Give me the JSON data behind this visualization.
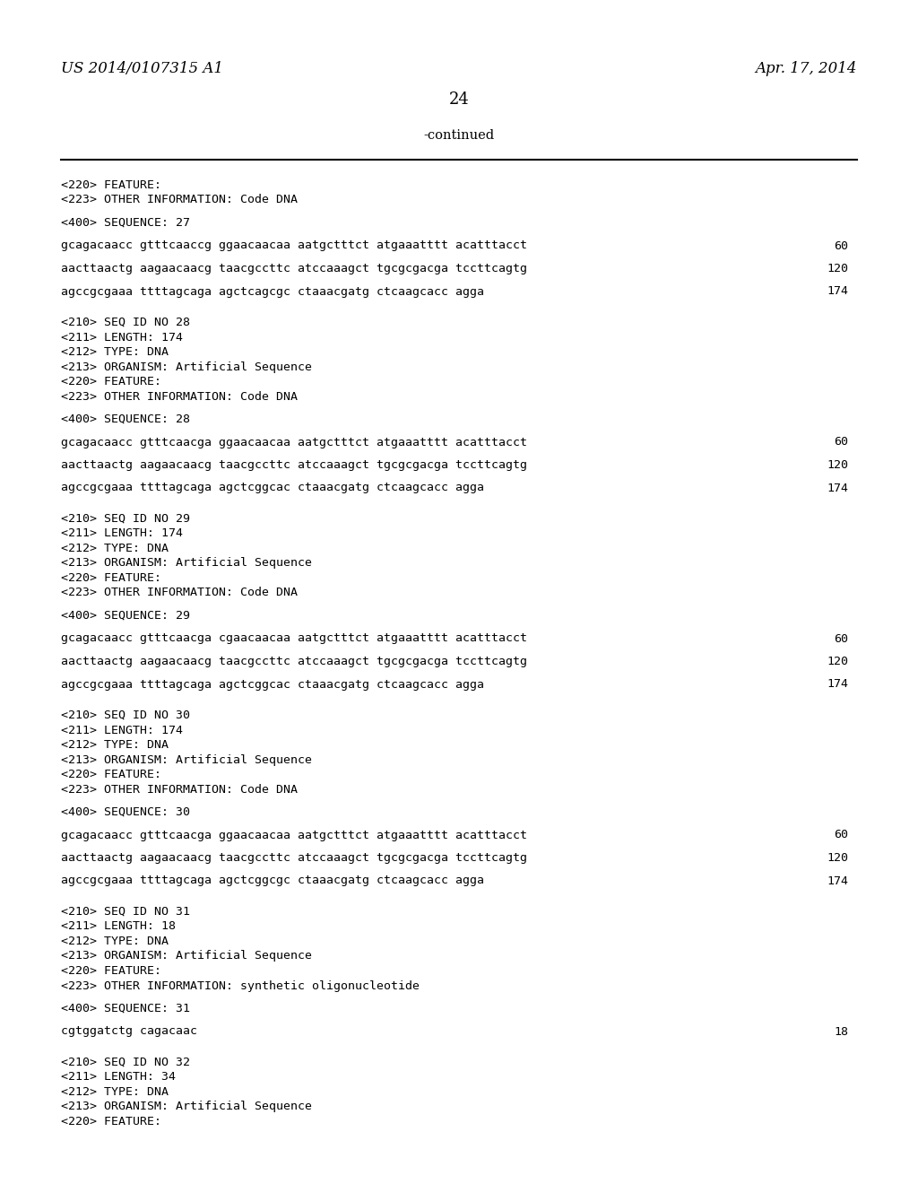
{
  "background_color": "#ffffff",
  "header_left": "US 2014/0107315 A1",
  "header_right": "Apr. 17, 2014",
  "page_number": "24",
  "continued_label": "-continued",
  "content_lines": [
    {
      "text": "<220> FEATURE:",
      "type": "meta"
    },
    {
      "text": "<223> OTHER INFORMATION: Code DNA",
      "type": "meta"
    },
    {
      "text": "",
      "type": "blank"
    },
    {
      "text": "<400> SEQUENCE: 27",
      "type": "meta"
    },
    {
      "text": "",
      "type": "blank"
    },
    {
      "text": "gcagacaacc gtttcaaccg ggaacaacaa aatgctttct atgaaatttt acatttacct",
      "num": "60",
      "type": "seq"
    },
    {
      "text": "",
      "type": "blank"
    },
    {
      "text": "aacttaactg aagaacaacg taacgccttc atccaaagct tgcgcgacga tccttcagtg",
      "num": "120",
      "type": "seq"
    },
    {
      "text": "",
      "type": "blank"
    },
    {
      "text": "agccgcgaaa ttttagcaga agctcagcgc ctaaacgatg ctcaagcacc agga",
      "num": "174",
      "type": "seq"
    },
    {
      "text": "",
      "type": "blank"
    },
    {
      "text": "",
      "type": "blank"
    },
    {
      "text": "<210> SEQ ID NO 28",
      "type": "meta"
    },
    {
      "text": "<211> LENGTH: 174",
      "type": "meta"
    },
    {
      "text": "<212> TYPE: DNA",
      "type": "meta"
    },
    {
      "text": "<213> ORGANISM: Artificial Sequence",
      "type": "meta"
    },
    {
      "text": "<220> FEATURE:",
      "type": "meta"
    },
    {
      "text": "<223> OTHER INFORMATION: Code DNA",
      "type": "meta"
    },
    {
      "text": "",
      "type": "blank"
    },
    {
      "text": "<400> SEQUENCE: 28",
      "type": "meta"
    },
    {
      "text": "",
      "type": "blank"
    },
    {
      "text": "gcagacaacc gtttcaacga ggaacaacaa aatgctttct atgaaatttt acatttacct",
      "num": "60",
      "type": "seq"
    },
    {
      "text": "",
      "type": "blank"
    },
    {
      "text": "aacttaactg aagaacaacg taacgccttc atccaaagct tgcgcgacga tccttcagtg",
      "num": "120",
      "type": "seq"
    },
    {
      "text": "",
      "type": "blank"
    },
    {
      "text": "agccgcgaaa ttttagcaga agctcggcac ctaaacgatg ctcaagcacc agga",
      "num": "174",
      "type": "seq"
    },
    {
      "text": "",
      "type": "blank"
    },
    {
      "text": "",
      "type": "blank"
    },
    {
      "text": "<210> SEQ ID NO 29",
      "type": "meta"
    },
    {
      "text": "<211> LENGTH: 174",
      "type": "meta"
    },
    {
      "text": "<212> TYPE: DNA",
      "type": "meta"
    },
    {
      "text": "<213> ORGANISM: Artificial Sequence",
      "type": "meta"
    },
    {
      "text": "<220> FEATURE:",
      "type": "meta"
    },
    {
      "text": "<223> OTHER INFORMATION: Code DNA",
      "type": "meta"
    },
    {
      "text": "",
      "type": "blank"
    },
    {
      "text": "<400> SEQUENCE: 29",
      "type": "meta"
    },
    {
      "text": "",
      "type": "blank"
    },
    {
      "text": "gcagacaacc gtttcaacga cgaacaacaa aatgctttct atgaaatttt acatttacct",
      "num": "60",
      "type": "seq"
    },
    {
      "text": "",
      "type": "blank"
    },
    {
      "text": "aacttaactg aagaacaacg taacgccttc atccaaagct tgcgcgacga tccttcagtg",
      "num": "120",
      "type": "seq"
    },
    {
      "text": "",
      "type": "blank"
    },
    {
      "text": "agccgcgaaa ttttagcaga agctcggcac ctaaacgatg ctcaagcacc agga",
      "num": "174",
      "type": "seq"
    },
    {
      "text": "",
      "type": "blank"
    },
    {
      "text": "",
      "type": "blank"
    },
    {
      "text": "<210> SEQ ID NO 30",
      "type": "meta"
    },
    {
      "text": "<211> LENGTH: 174",
      "type": "meta"
    },
    {
      "text": "<212> TYPE: DNA",
      "type": "meta"
    },
    {
      "text": "<213> ORGANISM: Artificial Sequence",
      "type": "meta"
    },
    {
      "text": "<220> FEATURE:",
      "type": "meta"
    },
    {
      "text": "<223> OTHER INFORMATION: Code DNA",
      "type": "meta"
    },
    {
      "text": "",
      "type": "blank"
    },
    {
      "text": "<400> SEQUENCE: 30",
      "type": "meta"
    },
    {
      "text": "",
      "type": "blank"
    },
    {
      "text": "gcagacaacc gtttcaacga ggaacaacaa aatgctttct atgaaatttt acatttacct",
      "num": "60",
      "type": "seq"
    },
    {
      "text": "",
      "type": "blank"
    },
    {
      "text": "aacttaactg aagaacaacg taacgccttc atccaaagct tgcgcgacga tccttcagtg",
      "num": "120",
      "type": "seq"
    },
    {
      "text": "",
      "type": "blank"
    },
    {
      "text": "agccgcgaaa ttttagcaga agctcggcgc ctaaacgatg ctcaagcacc agga",
      "num": "174",
      "type": "seq"
    },
    {
      "text": "",
      "type": "blank"
    },
    {
      "text": "",
      "type": "blank"
    },
    {
      "text": "<210> SEQ ID NO 31",
      "type": "meta"
    },
    {
      "text": "<211> LENGTH: 18",
      "type": "meta"
    },
    {
      "text": "<212> TYPE: DNA",
      "type": "meta"
    },
    {
      "text": "<213> ORGANISM: Artificial Sequence",
      "type": "meta"
    },
    {
      "text": "<220> FEATURE:",
      "type": "meta"
    },
    {
      "text": "<223> OTHER INFORMATION: synthetic oligonucleotide",
      "type": "meta"
    },
    {
      "text": "",
      "type": "blank"
    },
    {
      "text": "<400> SEQUENCE: 31",
      "type": "meta"
    },
    {
      "text": "",
      "type": "blank"
    },
    {
      "text": "cgtggatctg cagacaac",
      "num": "18",
      "type": "seq"
    },
    {
      "text": "",
      "type": "blank"
    },
    {
      "text": "",
      "type": "blank"
    },
    {
      "text": "<210> SEQ ID NO 32",
      "type": "meta"
    },
    {
      "text": "<211> LENGTH: 34",
      "type": "meta"
    },
    {
      "text": "<212> TYPE: DNA",
      "type": "meta"
    },
    {
      "text": "<213> ORGANISM: Artificial Sequence",
      "type": "meta"
    },
    {
      "text": "<220> FEATURE:",
      "type": "meta"
    }
  ]
}
